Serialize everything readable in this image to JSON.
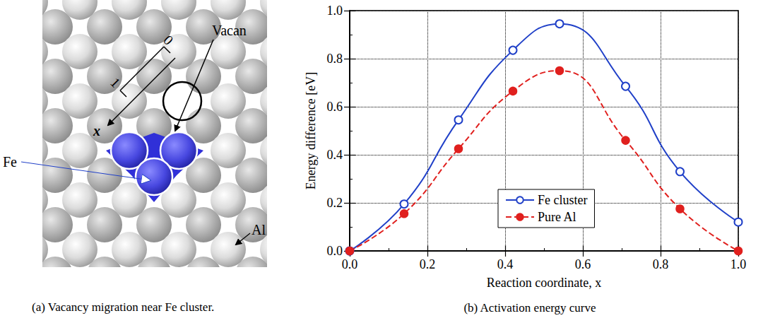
{
  "diagram": {
    "caption": "(a) Vacancy migration near Fe cluster.",
    "labels": {
      "vacancy": "Vacan",
      "fe": "Fe",
      "al": "Al",
      "coord_start": "0",
      "coord_end": "1",
      "coord_axis": "x"
    }
  },
  "chart_data": {
    "type": "line",
    "title": "(b) Activation energy curve",
    "x_label": "Reaction coordinate, x",
    "y_label": "Energy difference [eV]",
    "x": [
      0,
      0.14,
      0.28,
      0.42,
      0.54,
      0.71,
      0.85,
      1.0
    ],
    "series": [
      {
        "name": "Fe cluster",
        "color": "#2040c8",
        "marker": "open_circle",
        "line_style": "solid",
        "values": [
          0,
          0.195,
          0.545,
          0.835,
          0.945,
          0.685,
          0.33,
          0.12
        ]
      },
      {
        "name": "Pure Al",
        "color": "#e0201e",
        "marker": "circle",
        "line_style": "dashed",
        "values": [
          0,
          0.155,
          0.425,
          0.665,
          0.75,
          0.46,
          0.175,
          0.0
        ]
      }
    ],
    "xlim": [
      0,
      1
    ],
    "ylim": [
      0,
      1
    ],
    "xticks": [
      {
        "value": 0,
        "label": "0.0"
      },
      0.2,
      0.4,
      0.6,
      0.8,
      {
        "value": 1,
        "label": "1.0"
      }
    ],
    "yticks": [
      {
        "value": 0,
        "label": "0.0"
      },
      0.2,
      0.4,
      0.6,
      0.8,
      {
        "value": 1,
        "label": "1.0"
      }
    ],
    "grid": true,
    "legend": "bottom"
  }
}
